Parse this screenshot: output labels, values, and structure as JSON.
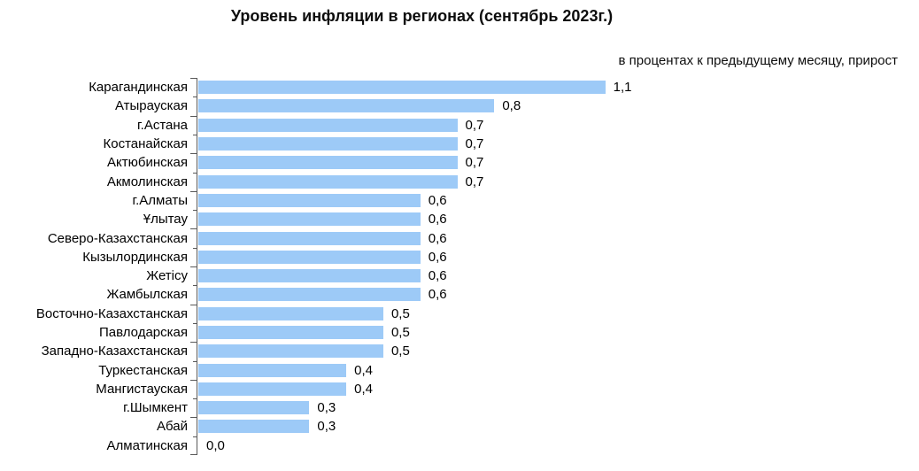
{
  "chart_data": {
    "type": "bar",
    "orientation": "horizontal",
    "title": "Уровень инфляции в регионах (сентябрь 2023г.)",
    "subtitle": "в процентах к предыдущему месяцу, прирост",
    "xlabel": "",
    "ylabel": "",
    "categories": [
      "Карагандинская",
      "Атырауская",
      "г.Астана",
      "Костанайская",
      "Актюбинская",
      "Акмолинская",
      "г.Алматы",
      "Ұлытау",
      "Северо-Казахстанская",
      "Кызылординская",
      "Жетісу",
      "Жамбылская",
      "Восточно-Казахстанская",
      "Павлодарская",
      "Западно-Казахстанская",
      "Туркестанская",
      "Мангистауская",
      "г.Шымкент",
      "Абай",
      "Алматинская"
    ],
    "values": [
      1.1,
      0.8,
      0.7,
      0.7,
      0.7,
      0.7,
      0.6,
      0.6,
      0.6,
      0.6,
      0.6,
      0.6,
      0.5,
      0.5,
      0.5,
      0.4,
      0.4,
      0.3,
      0.3,
      0.0
    ],
    "value_labels": [
      "1,1",
      "0,8",
      "0,7",
      "0,7",
      "0,7",
      "0,7",
      "0,6",
      "0,6",
      "0,6",
      "0,6",
      "0,6",
      "0,6",
      "0,5",
      "0,5",
      "0,5",
      "0,4",
      "0,4",
      "0,3",
      "0,3",
      "0,0"
    ],
    "xlim": [
      0,
      1.9
    ],
    "grid": false,
    "legend": false,
    "data_labels": true,
    "bar_color": "#9DCAF7",
    "axis_color": "#595959"
  }
}
